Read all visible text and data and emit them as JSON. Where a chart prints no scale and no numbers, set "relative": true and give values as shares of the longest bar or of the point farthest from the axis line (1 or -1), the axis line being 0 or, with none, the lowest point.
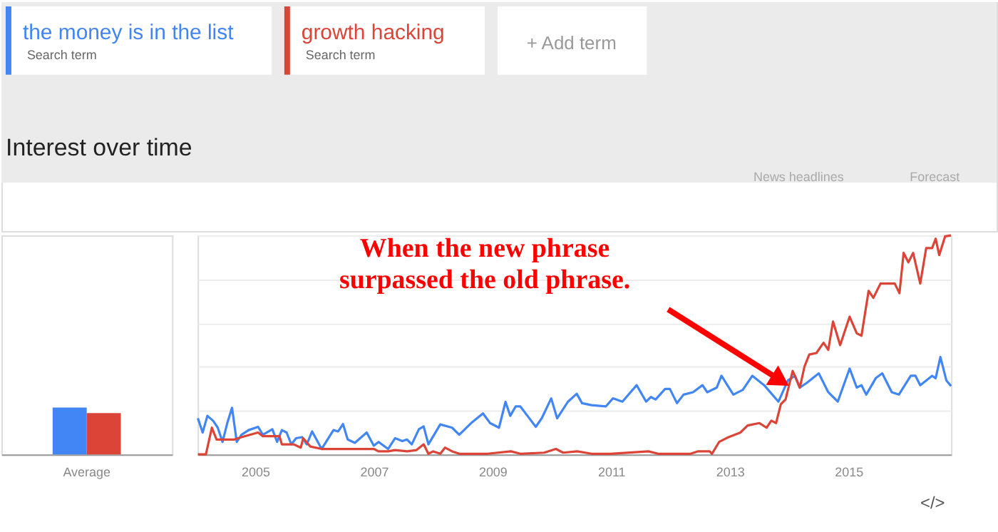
{
  "chart_data": [
    {
      "type": "bar",
      "relative": true,
      "categories": [
        "Average"
      ],
      "series": [
        {
          "color": "#4285f4",
          "values": [
            1
          ]
        },
        {
          "color": "#db4437",
          "values": [
            0.88
          ]
        }
      ]
    },
    {
      "type": "line",
      "title": "Interest over time",
      "relative": true,
      "legend": "top left",
      "grid": "y",
      "line_style": "solid",
      "xlim": [
        2004.03,
        2016.73
      ],
      "xticks": [
        2005,
        2007,
        2009,
        2011,
        2013,
        2015
      ],
      "annotations": [
        "When the new phrase\nsurpassed the old phrase.",
        "Search term",
        "Search term",
        "+ Add term",
        "News headlines",
        "Forecast",
        "</>"
      ],
      "series": [
        {
          "name": "the money is in the list",
          "color": "#4285f4",
          "x": [
            2004.035,
            2004.115,
            2004.195,
            2004.29,
            2004.37,
            2004.45,
            2004.53,
            2004.61,
            2004.69,
            2004.77,
            2004.89,
            2005.05,
            2005.13,
            2005.29,
            2005.37,
            2005.45,
            2005.53,
            2005.61,
            2005.69,
            2005.79,
            2005.87,
            2005.96,
            2006.12,
            2006.32,
            2006.4,
            2006.48,
            2006.56,
            2006.68,
            2006.88,
            2007.0,
            2007.08,
            2007.24,
            2007.36,
            2007.48,
            2007.56,
            2007.64,
            2007.76,
            2007.84,
            2007.92,
            2008.12,
            2008.32,
            2008.44,
            2008.52,
            2008.64,
            2008.84,
            2008.96,
            2009.11,
            2009.22,
            2009.3,
            2009.39,
            2009.47,
            2009.59,
            2009.73,
            2009.83,
            2009.99,
            2010.09,
            2010.27,
            2010.42,
            2010.51,
            2010.67,
            2010.91,
            2011.03,
            2011.19,
            2011.43,
            2011.59,
            2011.67,
            2011.75,
            2011.91,
            2011.99,
            2012.11,
            2012.22,
            2012.38,
            2012.54,
            2012.62,
            2012.78,
            2012.86,
            2013.06,
            2013.22,
            2013.38,
            2013.58,
            2013.82,
            2013.98,
            2014.1,
            2014.18,
            2014.3,
            2014.5,
            2014.66,
            2014.82,
            2015.02,
            2015.14,
            2015.22,
            2015.3,
            2015.46,
            2015.57,
            2015.73,
            2015.85,
            2016.05,
            2016.13,
            2016.21,
            2016.41,
            2016.47,
            2016.55,
            2016.65,
            2016.73
          ],
          "values": [
            0.165,
            0.1,
            0.176,
            0.154,
            0.122,
            0.057,
            0.143,
            0.213,
            0.057,
            0.09,
            0.111,
            0.126,
            0.09,
            0.115,
            0.057,
            0.111,
            0.1,
            0.046,
            0.074,
            0.079,
            0.046,
            0.105,
            0.025,
            0.111,
            0.105,
            0.139,
            0.068,
            0.053,
            0.1,
            0.04,
            0.057,
            0.025,
            0.074,
            0.061,
            0.068,
            0.046,
            0.115,
            0.128,
            0.046,
            0.137,
            0.122,
            0.09,
            0.111,
            0.143,
            0.187,
            0.143,
            0.122,
            0.24,
            0.176,
            0.219,
            0.219,
            0.176,
            0.126,
            0.165,
            0.256,
            0.165,
            0.24,
            0.277,
            0.234,
            0.225,
            0.219,
            0.256,
            0.241,
            0.316,
            0.241,
            0.262,
            0.251,
            0.299,
            0.299,
            0.234,
            0.273,
            0.284,
            0.316,
            0.284,
            0.305,
            0.359,
            0.273,
            0.295,
            0.359,
            0.316,
            0.241,
            0.338,
            0.359,
            0.305,
            0.327,
            0.37,
            0.284,
            0.241,
            0.392,
            0.305,
            0.316,
            0.273,
            0.348,
            0.37,
            0.284,
            0.273,
            0.359,
            0.359,
            0.316,
            0.359,
            0.348,
            0.445,
            0.338,
            0.312
          ]
        },
        {
          "name": "growth hacking",
          "color": "#db4437",
          "x": [
            2004.035,
            2004.17,
            2004.27,
            2004.35,
            2004.45,
            2004.65,
            2004.77,
            2005.05,
            2005.13,
            2005.33,
            2005.41,
            2005.45,
            2005.65,
            2005.77,
            2005.81,
            2005.93,
            2006.12,
            2006.36,
            2007.0,
            2007.08,
            2007.24,
            2007.36,
            2007.56,
            2007.72,
            2007.84,
            2007.92,
            2008.0,
            2008.12,
            2008.2,
            2008.32,
            2008.44,
            2008.92,
            2009.31,
            2009.47,
            2009.87,
            2010.07,
            2010.19,
            2010.43,
            2010.67,
            2010.99,
            2011.63,
            2011.79,
            2012.34,
            2012.46,
            2012.66,
            2012.7,
            2012.82,
            2012.98,
            2013.18,
            2013.3,
            2013.5,
            2013.62,
            2013.7,
            2013.78,
            2013.86,
            2013.94,
            2014.06,
            2014.18,
            2014.26,
            2014.34,
            2014.46,
            2014.58,
            2014.66,
            2014.74,
            2014.86,
            2015.02,
            2015.14,
            2015.22,
            2015.34,
            2015.42,
            2015.54,
            2015.7,
            2015.78,
            2015.86,
            2015.93,
            2016.01,
            2016.09,
            2016.21,
            2016.31,
            2016.41,
            2016.47,
            2016.53,
            2016.63,
            2016.73
          ],
          "values": [
            0,
            0,
            0.122,
            0.068,
            0.068,
            0.068,
            0.079,
            0.1,
            0.083,
            0.083,
            0.083,
            0.046,
            0.046,
            0.031,
            0.074,
            0.036,
            0.025,
            0.025,
            0.025,
            0.014,
            0.014,
            0.02,
            0.014,
            0.02,
            0.046,
            0.003,
            0.014,
            0.003,
            0.031,
            0.014,
            0.003,
            0.003,
            0.014,
            0.003,
            0.008,
            0.025,
            0.008,
            0.014,
            0.003,
            0.003,
            0.014,
            0.003,
            0.003,
            0.014,
            0.014,
            0.003,
            0.057,
            0.079,
            0.1,
            0.132,
            0.143,
            0.122,
            0.154,
            0.143,
            0.229,
            0.251,
            0.381,
            0.305,
            0.402,
            0.456,
            0.463,
            0.51,
            0.477,
            0.607,
            0.499,
            0.629,
            0.553,
            0.542,
            0.747,
            0.715,
            0.78,
            0.78,
            0.78,
            0.736,
            0.92,
            0.877,
            0.92,
            0.78,
            0.942,
            0.942,
            0.985,
            0.91,
            0.996,
            1.0
          ]
        }
      ]
    }
  ]
}
